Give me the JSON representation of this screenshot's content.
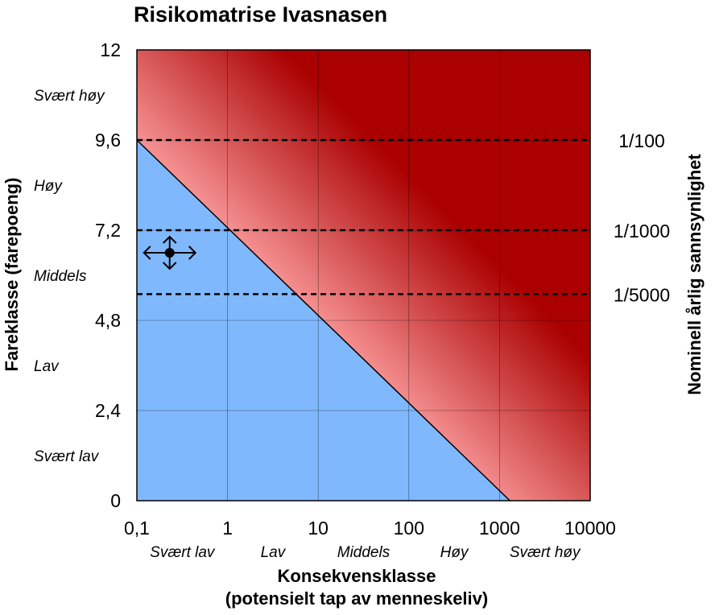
{
  "chart_data": {
    "type": "heatmap",
    "title": "Risikomatrise Ivasnasen",
    "xlabel_line1": "Konsekvensklasse",
    "xlabel_line2": "(potensielt tap av menneskeliv)",
    "ylabel": "Fareklasse (farepoeng)",
    "y2label": "Nominell årlig sannsynlighet",
    "x_scale": "log",
    "xlim": [
      0.1,
      10000
    ],
    "ylim": [
      0,
      12
    ],
    "x_ticks": [
      0.1,
      1,
      10,
      100,
      1000,
      10000
    ],
    "x_tick_labels": [
      "0,1",
      "1",
      "10",
      "100",
      "1000",
      "10000"
    ],
    "y_ticks": [
      0,
      2.4,
      4.8,
      7.2,
      9.6,
      12
    ],
    "y_tick_labels": [
      "0",
      "2,4",
      "4,8",
      "7,2",
      "9,6",
      "12"
    ],
    "x_classes": [
      "Svært lav",
      "Lav",
      "Middels",
      "Høy",
      "Svært høy"
    ],
    "y_classes": [
      "Svært lav",
      "Lav",
      "Middels",
      "Høy",
      "Svært høy"
    ],
    "probability_lines": [
      {
        "label": "1/100",
        "y": 9.6
      },
      {
        "label": "1/1000",
        "y": 7.2
      },
      {
        "label": "1/5000",
        "y": 5.5
      }
    ],
    "boundary_line": {
      "from": [
        0.1,
        9.6
      ],
      "to": [
        1300,
        0
      ]
    },
    "zones": [
      {
        "name": "low",
        "color": "#7fb8fd"
      },
      {
        "name": "medium",
        "color": "#fea2a3"
      },
      {
        "name": "high",
        "color": "#aa0000"
      }
    ],
    "marker": {
      "x": 0.23,
      "y": 6.6
    },
    "grid": true
  }
}
